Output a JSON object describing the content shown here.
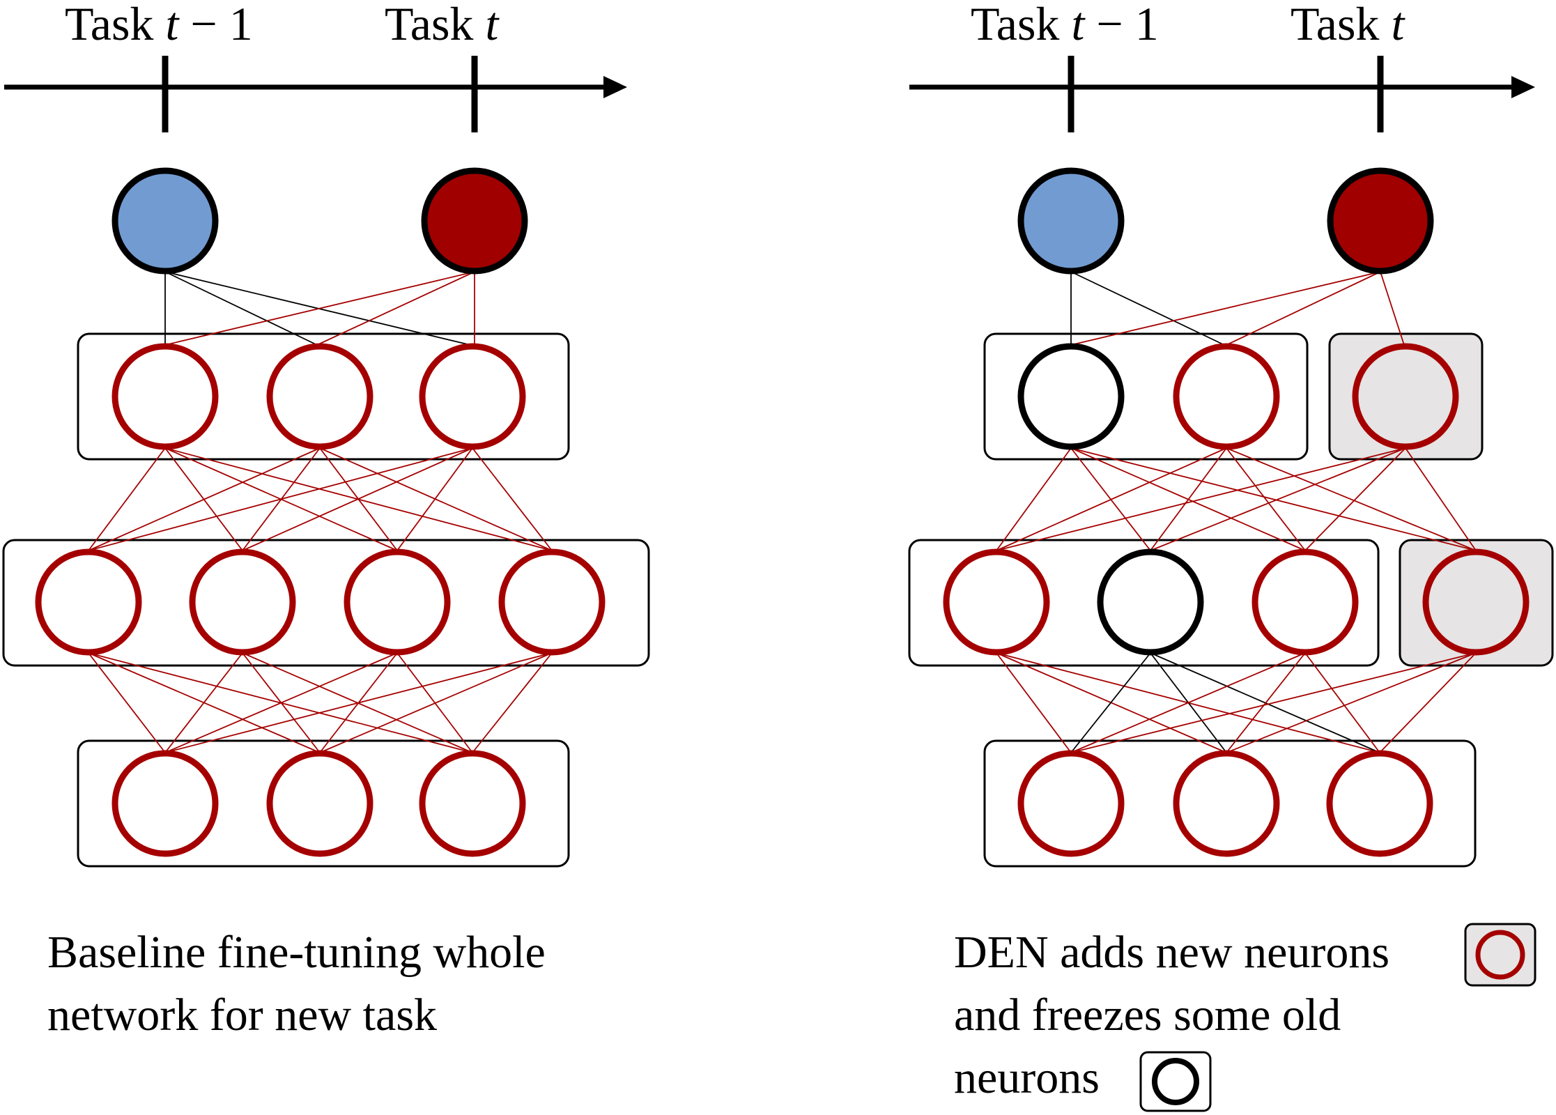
{
  "left_panel": {
    "timeline": {
      "label_prev_word": "Task",
      "label_prev_var": "t",
      "label_prev_suffix": " − 1",
      "label_curr_word": "Task",
      "label_curr_var": "t"
    },
    "caption_line1": "Baseline fine-tuning whole",
    "caption_line2": "network for new task"
  },
  "right_panel": {
    "timeline": {
      "label_prev_word": "Task",
      "label_prev_var": "t",
      "label_prev_suffix": " − 1",
      "label_curr_word": "Task",
      "label_curr_var": "t"
    },
    "caption_line1": "DEN adds new neurons",
    "caption_line2": "and freezes some old",
    "caption_line3": "neurons"
  },
  "colors": {
    "old_task_output": "#729bd2",
    "new_task_output": "#a00000",
    "trained_neuron": "#a50000",
    "frozen_neuron": "#000000",
    "new_neuron_fill": "#e6e4e4"
  }
}
